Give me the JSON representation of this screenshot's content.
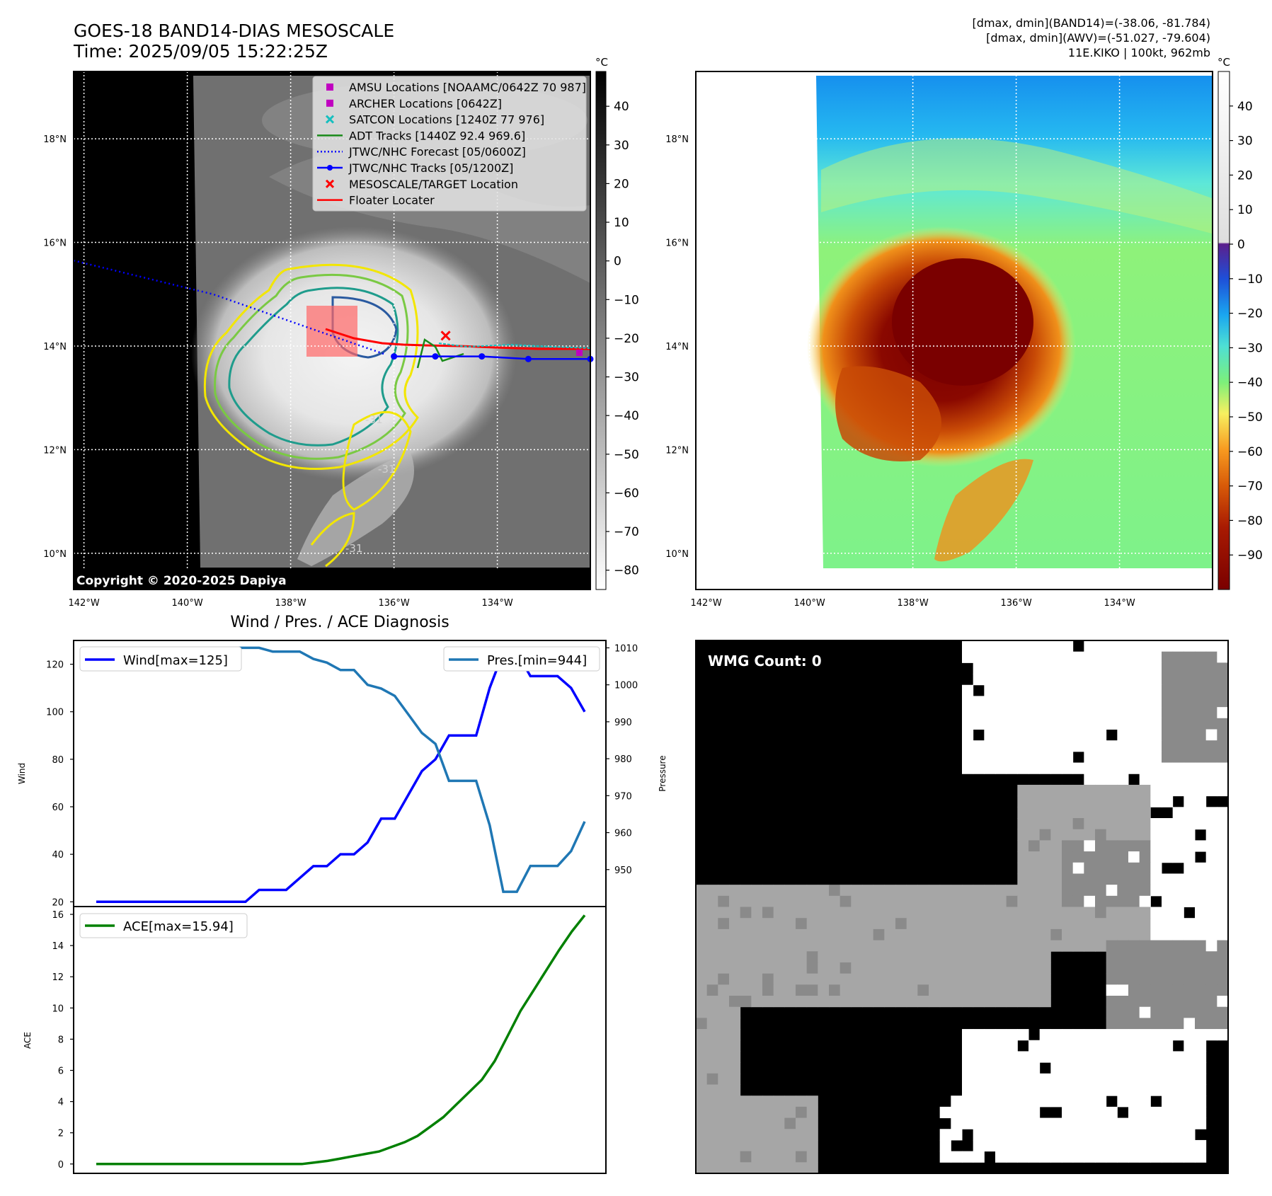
{
  "header": {
    "title_line1": "GOES-18 BAND14-DIAS MESOSCALE",
    "title_line2": "Time: 2025/09/05 15:22:25Z",
    "info_line1": "[dmax, dmin](BAND14)=(-38.06, -81.784)",
    "info_line2": "[dmax, dmin](AWV)=(-51.027, -79.604)",
    "info_line3": "11E.KIKO | 100kt, 962mb"
  },
  "map_axes": {
    "lon_labels": [
      "142°W",
      "140°W",
      "138°W",
      "136°W",
      "134°W"
    ],
    "lon_values": [
      -142,
      -140,
      -138,
      -136,
      -134
    ],
    "lon_range": [
      -142.2,
      -132.2
    ],
    "lat_labels": [
      "18°N",
      "16°N",
      "14°N",
      "12°N",
      "10°N"
    ],
    "lat_values": [
      18,
      16,
      14,
      12,
      10
    ],
    "lat_range": [
      9.3,
      19.3
    ]
  },
  "ir_panel": {
    "colorbar_unit": "°C",
    "colorbar_ticks": [
      "40",
      "30",
      "20",
      "10",
      "0",
      "−10",
      "−20",
      "−30",
      "−40",
      "−50",
      "−60",
      "−70",
      "−80"
    ],
    "colorbar_values": [
      40,
      30,
      20,
      10,
      0,
      -10,
      -20,
      -30,
      -40,
      -50,
      -60,
      -70,
      -80
    ],
    "colorbar_range": [
      -85,
      49
    ],
    "copyright": "Copyright © 2020-2025 Dapiya",
    "contour_labels": [
      "-31",
      "-31",
      "-31"
    ],
    "legend": [
      {
        "label": "AMSU Locations [NOAAMC/0642Z 70 987]",
        "color": "#c000c0",
        "marker": "square"
      },
      {
        "label": "ARCHER Locations [0642Z]",
        "color": "#c000c0",
        "marker": "square"
      },
      {
        "label": "SATCON Locations [1240Z 77 976]",
        "color": "#17bfbf",
        "marker": "x"
      },
      {
        "label": "ADT Tracks [1440Z 92.4 969.6]",
        "color": "#1a8a1a",
        "marker": "line"
      },
      {
        "label": "JTWC/NHC Forecast [05/0600Z]",
        "color": "#0000ff",
        "marker": "dotted"
      },
      {
        "label": "JTWC/NHC Tracks [05/1200Z]",
        "color": "#0000ff",
        "marker": "line-dot"
      },
      {
        "label": "MESOSCALE/TARGET Location",
        "color": "#ff0000",
        "marker": "x"
      },
      {
        "label": "Floater Locater",
        "color": "#ff0000",
        "marker": "line"
      }
    ],
    "forecast_track": [
      [
        -142.2,
        15.65
      ],
      [
        -139.5,
        15.0
      ],
      [
        -137.5,
        14.3
      ],
      [
        -136.2,
        13.85
      ]
    ],
    "best_track": [
      [
        -136.0,
        13.8
      ],
      [
        -135.2,
        13.8
      ],
      [
        -134.3,
        13.8
      ],
      [
        -133.4,
        13.75
      ],
      [
        -132.2,
        13.75
      ]
    ],
    "target_location": [
      -135.0,
      14.2
    ]
  },
  "wv_panel": {
    "colorbar_unit": "°C",
    "colorbar_ticks": [
      "40",
      "30",
      "20",
      "10",
      "0",
      "−10",
      "−20",
      "−30",
      "−40",
      "−50",
      "−60",
      "−70",
      "−80",
      "−90"
    ],
    "colorbar_values": [
      40,
      30,
      20,
      10,
      0,
      -10,
      -20,
      -30,
      -40,
      -50,
      -60,
      -70,
      -80,
      -90
    ],
    "colorbar_range": [
      -100,
      50
    ]
  },
  "wmg_panel": {
    "label": "WMG Count: 0"
  },
  "chart_data": [
    {
      "type": "line",
      "title": "Wind / Pres. / ACE Diagnosis",
      "ylabel": "Wind",
      "y2label": "Pressure",
      "ylim": [
        18,
        130
      ],
      "y2lim": [
        940,
        1012
      ],
      "yticks": [
        20,
        40,
        60,
        80,
        100,
        120
      ],
      "y2ticks": [
        950,
        960,
        970,
        980,
        990,
        1000,
        1010
      ],
      "series": [
        {
          "name": "Wind[max=125]",
          "color": "#0000ff",
          "values": [
            20,
            20,
            20,
            20,
            20,
            20,
            20,
            20,
            20,
            20,
            20,
            20,
            25,
            25,
            25,
            30,
            35,
            35,
            40,
            40,
            45,
            55,
            55,
            65,
            75,
            80,
            90,
            90,
            90,
            110,
            125,
            125,
            115,
            115,
            115,
            110,
            100
          ]
        },
        {
          "name": "Pres.[min=944]",
          "color": "#1f77b4",
          "axis": "right",
          "values": [
            1010,
            1010,
            1010,
            1010,
            1010,
            1010,
            1010,
            1010,
            1010,
            1010,
            1010,
            1010,
            1010,
            1009,
            1009,
            1009,
            1007,
            1006,
            1004,
            1004,
            1000,
            999,
            997,
            992,
            987,
            984,
            974,
            974,
            974,
            962,
            944,
            944,
            951,
            951,
            951,
            955,
            963
          ]
        }
      ],
      "legend_left": "upper-left",
      "legend_right": "upper-right"
    },
    {
      "type": "line",
      "ylabel": "ACE",
      "ylim": [
        -0.6,
        16.5
      ],
      "yticks": [
        0,
        2,
        4,
        6,
        8,
        10,
        12,
        14,
        16
      ],
      "series": [
        {
          "name": "ACE[max=15.94]",
          "color": "#008000",
          "values": [
            0,
            0,
            0,
            0,
            0,
            0,
            0,
            0,
            0,
            0,
            0,
            0,
            0,
            0,
            0,
            0,
            0,
            0.1,
            0.2,
            0.35,
            0.5,
            0.65,
            0.8,
            1.1,
            1.4,
            1.8,
            2.4,
            3.0,
            3.8,
            4.6,
            5.4,
            6.6,
            8.2,
            9.8,
            11.1,
            12.4,
            13.7,
            14.9,
            15.94
          ]
        }
      ],
      "legend": "upper-left"
    }
  ]
}
